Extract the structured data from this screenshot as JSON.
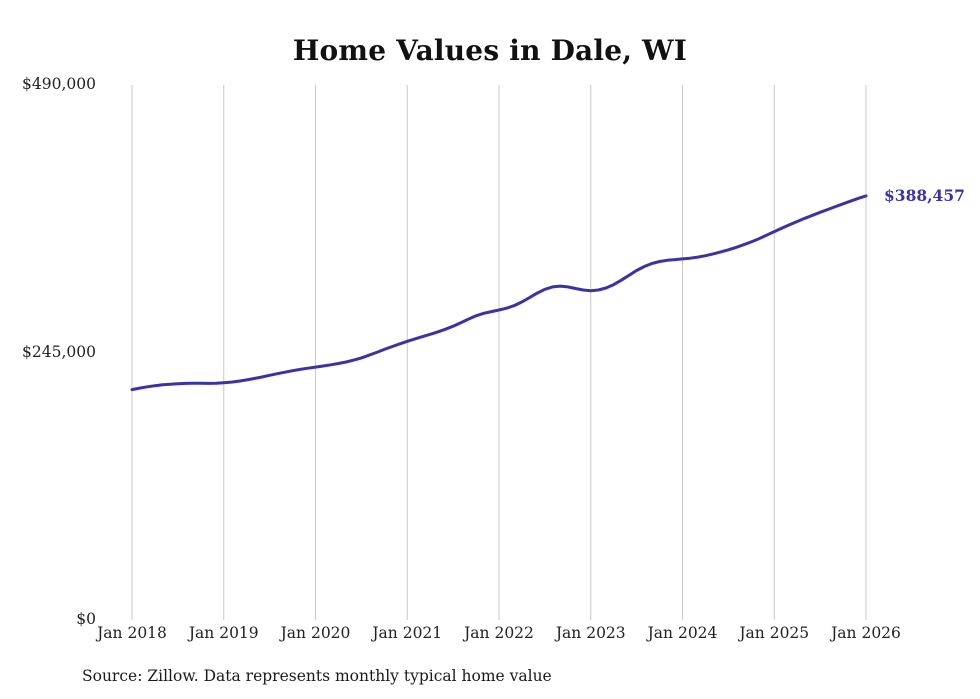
{
  "end_label": "$388,457",
  "source": "Source: Zillow. Data represents monthly typical home value",
  "chart_data": {
    "type": "line",
    "title": "Home Values in Dale, WI",
    "xlabel": "",
    "ylabel": "",
    "ylim": [
      0,
      490000
    ],
    "grid": "vertical-only",
    "grid_color": "#c9c9c9",
    "line_color": "#3a33a8",
    "legend": "none",
    "x_tick_labels": [
      "Jan 2018",
      "Jan 2019",
      "Jan 2020",
      "Jan 2021",
      "Jan 2022",
      "Jan 2023",
      "Jan 2024",
      "Jan 2025",
      "Jan 2026"
    ],
    "y_ticks": [
      {
        "value": 0,
        "label": "$0"
      },
      {
        "value": 245000,
        "label": "$245,000"
      },
      {
        "value": 490000,
        "label": "$490,000"
      }
    ],
    "final_value": 388457,
    "series": [
      {
        "name": "Monthly typical home value",
        "start": "Jan 2018",
        "frequency": "monthly",
        "values": [
          211000,
          212400,
          213600,
          214600,
          215400,
          216000,
          216400,
          216700,
          216800,
          216800,
          216700,
          216900,
          217300,
          217900,
          218800,
          219900,
          221200,
          222600,
          224100,
          225600,
          227000,
          228300,
          229500,
          230600,
          231600,
          232600,
          233700,
          234900,
          236300,
          238000,
          240100,
          242500,
          245100,
          247800,
          250400,
          252900,
          255300,
          257500,
          259600,
          261700,
          263900,
          266300,
          269100,
          272300,
          275600,
          278600,
          280900,
          282500,
          283900,
          285600,
          288000,
          291300,
          295300,
          299400,
          302900,
          305100,
          305800,
          305100,
          303600,
          302200,
          301500,
          302200,
          304100,
          307200,
          311200,
          315700,
          320100,
          323800,
          326500,
          328300,
          329400,
          330100,
          330700,
          331400,
          332400,
          333700,
          335300,
          337100,
          339100,
          341300,
          343700,
          346300,
          349200,
          352400,
          355700,
          358900,
          362000,
          365000,
          367900,
          370700,
          373400,
          376000,
          378600,
          381200,
          383700,
          386200,
          388457
        ]
      }
    ]
  }
}
